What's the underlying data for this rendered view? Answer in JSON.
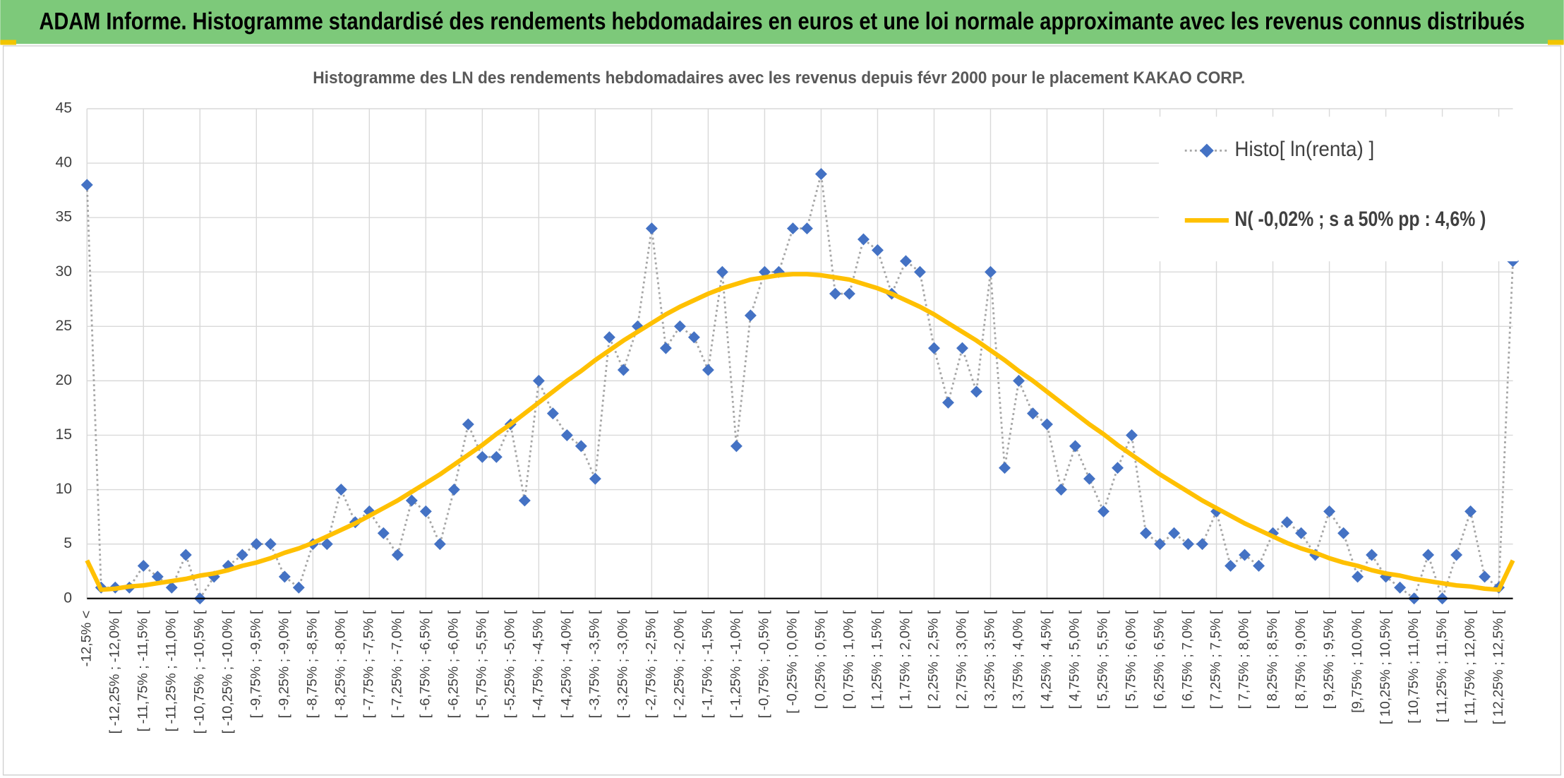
{
  "chart_data": {
    "type": "line",
    "title": "ADAM Informe. Histogramme standardisé des rendements hebdomadaires en euros et une loi normale approximante avec les revenus connus distribués",
    "subtitle": "Histogramme des LN des rendements hebdomadaires avec les revenus depuis févr 2000 pour le placement KAKAO CORP.",
    "categories": [
      "-12,5% <",
      null,
      "[ -12,25% ; -12,0% [",
      null,
      "[ -11,75% ; -11,5% [",
      null,
      "[ -11,25% ; -11,0% [",
      null,
      "[ -10,75% ; -10,5% [",
      null,
      "[ -10,25% ; -10,0% [",
      null,
      "[ -9,75% ; -9,5% [",
      null,
      "[ -9,25% ; -9,0% [",
      null,
      "[ -8,75% ; -8,5% [",
      null,
      "[ -8,25% ; -8,0% [",
      null,
      "[ -7,75% ; -7,5% [",
      null,
      "[ -7,25% ; -7,0% [",
      null,
      "[ -6,75% ; -6,5% [",
      null,
      "[ -6,25% ; -6,0% [",
      null,
      "[ -5,75% ; -5,5% [",
      null,
      "[ -5,25% ; -5,0% [",
      null,
      "[ -4,75% ; -4,5% [",
      null,
      "[ -4,25% ; -4,0% [",
      null,
      "[ -3,75% ; -3,5% [",
      null,
      "[ -3,25% ; -3,0% [",
      null,
      "[ -2,75% ; -2,5% [",
      null,
      "[ -2,25% ; -2,0% [",
      null,
      "[ -1,75% ; -1,5% [",
      null,
      "[ -1,25% ; -1,0% [",
      null,
      "[ -0,75% ; -0,5% [",
      null,
      "[ -0,25% ; 0,0% [",
      null,
      "[ 0,25% ; 0,5% [",
      null,
      "[ 0,75% ; 1,0% [",
      null,
      "[ 1,25% ; 1,5% [",
      null,
      "[ 1,75% ; 2,0% [",
      null,
      "[ 2,25% ; 2,5% [",
      null,
      "[ 2,75% ; 3,0% [",
      null,
      "[ 3,25% ; 3,5% [",
      null,
      "[ 3,75% ; 4,0% [",
      null,
      "[ 4,25% ; 4,5% [",
      null,
      "[ 4,75% ; 5,0% [",
      null,
      "[ 5,25% ; 5,5% [",
      null,
      "[ 5,75% ; 6,0% [",
      null,
      "[ 6,25% ; 6,5% [",
      null,
      "[ 6,75% ; 7,0% [",
      null,
      "[ 7,25% ; 7,5% [",
      null,
      "[ 7,75% ; 8,0% [",
      null,
      "[ 8,25% ; 8,5% [",
      null,
      "[ 8,75% ; 9,0% [",
      null,
      "[ 9,25% ; 9,5% [",
      null,
      "[9,75% ; 10,0% [",
      null,
      "[ 10,25% ; 10,5% [",
      null,
      "[ 10,75% ; 11,0% [",
      null,
      "[ 11,25% ; 11,5% [",
      null,
      "[ 11,75% ; 12,0% [",
      null,
      "[ 12,25% ; 12,5% [",
      null
    ],
    "series": [
      {
        "name": "Histo[ ln(renta) ]",
        "color": "#4472c4",
        "line_color": "#a6a6a6",
        "values": [
          38,
          1,
          1,
          1,
          3,
          2,
          1,
          4,
          0,
          2,
          3,
          4,
          5,
          5,
          2,
          1,
          5,
          5,
          10,
          7,
          8,
          6,
          4,
          9,
          8,
          5,
          10,
          16,
          13,
          13,
          16,
          9,
          20,
          17,
          15,
          14,
          11,
          24,
          21,
          25,
          34,
          23,
          25,
          24,
          21,
          30,
          14,
          26,
          30,
          30,
          34,
          34,
          39,
          28,
          28,
          33,
          32,
          28,
          31,
          30,
          23,
          18,
          23,
          19,
          30,
          12,
          20,
          17,
          16,
          10,
          14,
          11,
          8,
          12,
          15,
          6,
          5,
          6,
          5,
          5,
          8,
          3,
          4,
          3,
          6,
          7,
          6,
          4,
          8,
          6,
          2,
          4,
          2,
          1,
          0,
          4,
          0,
          4,
          8,
          2,
          1,
          31
        ]
      },
      {
        "name": "N( -0,02% ; s a 50% pp : 4,6% )",
        "color": "#ffc000",
        "values": [
          3.5,
          0.8,
          0.9,
          1.1,
          1.2,
          1.4,
          1.6,
          1.8,
          2.1,
          2.3,
          2.6,
          3.0,
          3.3,
          3.7,
          4.2,
          4.6,
          5.1,
          5.7,
          6.3,
          6.9,
          7.6,
          8.3,
          9.0,
          9.8,
          10.6,
          11.4,
          12.3,
          13.2,
          14.1,
          15.1,
          16.0,
          17.0,
          18.0,
          19.0,
          20.0,
          20.9,
          21.9,
          22.8,
          23.7,
          24.5,
          25.3,
          26.1,
          26.8,
          27.4,
          28.0,
          28.5,
          28.9,
          29.3,
          29.5,
          29.7,
          29.8,
          29.8,
          29.7,
          29.5,
          29.3,
          28.9,
          28.5,
          28.0,
          27.4,
          26.8,
          26.1,
          25.3,
          24.5,
          23.7,
          22.8,
          21.9,
          20.9,
          20.0,
          19.0,
          18.0,
          17.0,
          16.0,
          15.1,
          14.1,
          13.2,
          12.3,
          11.4,
          10.6,
          9.8,
          9.0,
          8.3,
          7.6,
          6.9,
          6.3,
          5.7,
          5.1,
          4.6,
          4.2,
          3.7,
          3.3,
          3.0,
          2.6,
          2.3,
          2.1,
          1.8,
          1.6,
          1.4,
          1.2,
          1.1,
          0.9,
          0.8,
          3.5
        ]
      }
    ],
    "ylim": [
      0,
      45
    ],
    "yticks": [
      0,
      5,
      10,
      15,
      20,
      25,
      30,
      35,
      40,
      45
    ],
    "grid": true,
    "legend": "upper right"
  }
}
